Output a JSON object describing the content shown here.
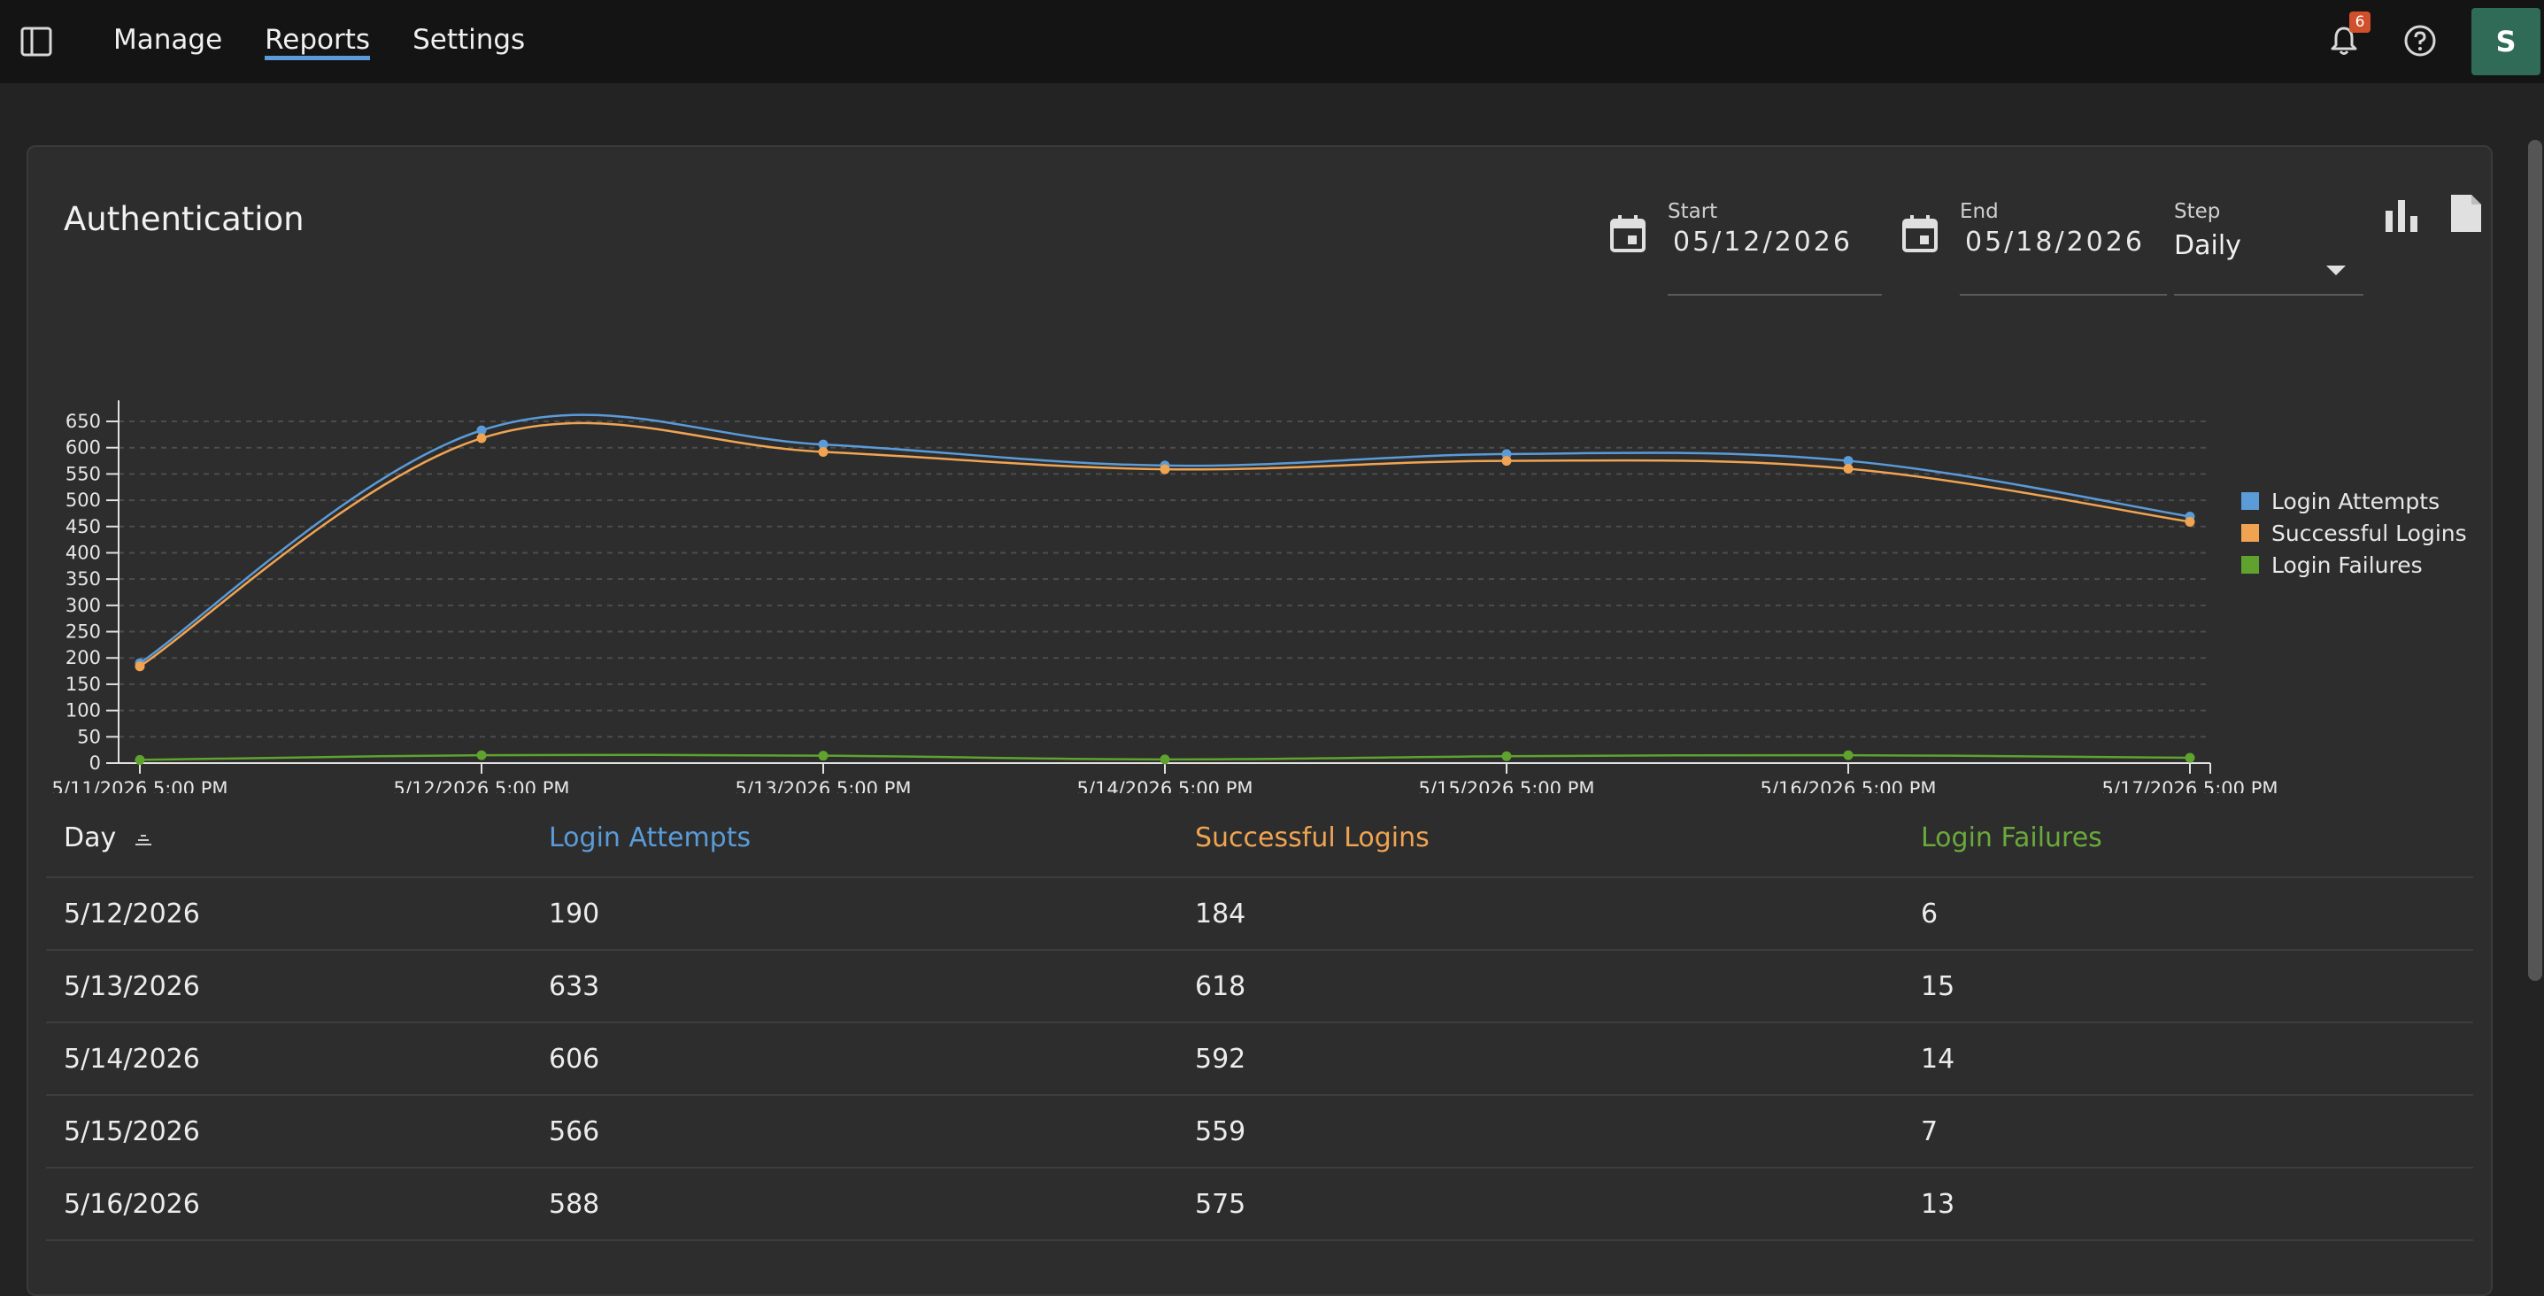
{
  "topbar": {
    "nav": [
      {
        "label": "Manage",
        "active": false
      },
      {
        "label": "Reports",
        "active": true
      },
      {
        "label": "Settings",
        "active": false
      }
    ],
    "notifications_count": "6",
    "avatar_initial": "S"
  },
  "card": {
    "title": "Authentication",
    "start": {
      "label": "Start",
      "value": "05/12/2026"
    },
    "end": {
      "label": "End",
      "value": "05/18/2026"
    },
    "step": {
      "label": "Step",
      "value": "Daily"
    }
  },
  "chart_data": {
    "type": "line",
    "x": [
      "5/11/2026 5:00 PM",
      "5/12/2026 5:00 PM",
      "5/13/2026 5:00 PM",
      "5/14/2026 5:00 PM",
      "5/15/2026 5:00 PM",
      "5/16/2026 5:00 PM",
      "5/17/2026 5:00 PM"
    ],
    "series": [
      {
        "name": "Login Attempts",
        "color": "#5a9bd8",
        "values": [
          190,
          633,
          606,
          566,
          588,
          575,
          469
        ]
      },
      {
        "name": "Successful Logins",
        "color": "#f0a452",
        "values": [
          184,
          618,
          592,
          559,
          575,
          560,
          459
        ]
      },
      {
        "name": "Login Failures",
        "color": "#5fa32e",
        "values": [
          6,
          15,
          14,
          7,
          13,
          15,
          10
        ]
      }
    ],
    "yticks": [
      0,
      50,
      100,
      150,
      200,
      250,
      300,
      350,
      400,
      450,
      500,
      550,
      600,
      650
    ],
    "ylim": [
      0,
      690
    ],
    "grid": true,
    "legend": "right"
  },
  "table": {
    "headers": {
      "day": "Day",
      "attempts": "Login Attempts",
      "success": "Successful Logins",
      "failures": "Login Failures"
    },
    "header_colors": {
      "attempts": "#5a9bd8",
      "success": "#f0a452",
      "failures": "#6aaa3a"
    },
    "rows": [
      {
        "day": "5/12/2026",
        "attempts": "190",
        "success": "184",
        "failures": "6"
      },
      {
        "day": "5/13/2026",
        "attempts": "633",
        "success": "618",
        "failures": "15"
      },
      {
        "day": "5/14/2026",
        "attempts": "606",
        "success": "592",
        "failures": "14"
      },
      {
        "day": "5/15/2026",
        "attempts": "566",
        "success": "559",
        "failures": "7"
      },
      {
        "day": "5/16/2026",
        "attempts": "588",
        "success": "575",
        "failures": "13"
      }
    ]
  }
}
